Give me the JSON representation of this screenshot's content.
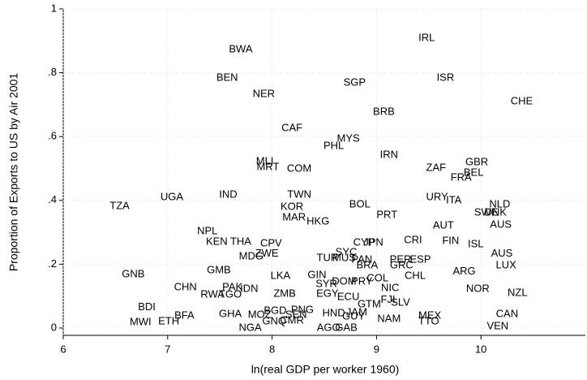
{
  "chart_data": {
    "type": "scatter",
    "xlabel": "ln(real GDP per worker 1960)",
    "ylabel": "Proportion of Exports to US by Air 2001",
    "xlim": [
      6,
      11
    ],
    "ylim": [
      -0.023,
      1
    ],
    "xticks": [
      6,
      7,
      8,
      9,
      10
    ],
    "yticks": [
      0,
      {
        "value": 0.2,
        "label": ".2"
      },
      {
        "value": 0.4,
        "label": ".4"
      },
      {
        "value": 0.6,
        "label": ".6"
      },
      {
        "value": 0.8,
        "label": ".8"
      },
      1
    ],
    "grid": true,
    "color": "#000000",
    "labels": [
      "IRL",
      "BWA",
      "BEN",
      "ISR",
      "SGP",
      "NER",
      "CHE",
      "BRB",
      "CAF",
      "MYS",
      "PHL",
      "IRN",
      "GBR",
      "MLI",
      "MRT",
      "COM",
      "ZAF",
      "BEL",
      "FRA",
      "TWN",
      "UGA",
      "IND",
      "URY",
      "ITA",
      "TZA",
      "KOR",
      "BOL",
      "NLD",
      "SWE",
      "DNK",
      "MAR",
      "PRT",
      "HKG",
      "AUS",
      "AUT",
      "NPL",
      "KEN",
      "THA",
      "CPV",
      "CRI",
      "FIN",
      "CYP",
      "JPN",
      "ISL",
      "SYC",
      "ZWE",
      "MDG",
      "TUR",
      "MUS",
      "PAN",
      "PER",
      "ESP",
      "AUS",
      "BRA",
      "GRC",
      "LUX",
      "GNB",
      "GMB",
      "LKA",
      "GIN",
      "SYR",
      "DOM",
      "PRY",
      "COL",
      "CHL",
      "ARG",
      "CHN",
      "PAK",
      "IDN",
      "RWA",
      "TGO",
      "ZMB",
      "EGY",
      "NIC",
      "NOR",
      "NZL",
      "ECU",
      "FJI",
      "SLV",
      "GTM",
      "BDI",
      "MWI",
      "ETH",
      "BFA",
      "GHA",
      "MOZ",
      "BGD",
      "PNG",
      "GNQ",
      "CMR",
      "SEN",
      "NGA",
      "HND",
      "JAM",
      "GUY",
      "AGO",
      "GAB",
      "NAM",
      "MEX",
      "TTO",
      "CAN",
      "VEN"
    ],
    "x": [
      9.48,
      7.7,
      7.57,
      9.66,
      8.79,
      7.92,
      10.39,
      9.07,
      8.19,
      8.73,
      8.59,
      9.12,
      9.96,
      7.93,
      7.96,
      8.26,
      9.57,
      9.93,
      9.81,
      8.26,
      7.04,
      7.58,
      9.58,
      9.74,
      6.54,
      8.19,
      8.84,
      10.18,
      10.05,
      10.14,
      8.21,
      9.1,
      8.44,
      10.19,
      9.64,
      7.38,
      7.47,
      7.7,
      7.99,
      9.35,
      9.71,
      8.88,
      8.97,
      9.95,
      8.71,
      7.95,
      7.8,
      8.53,
      8.69,
      8.86,
      9.23,
      9.42,
      10.2,
      8.91,
      9.24,
      10.24,
      6.67,
      7.49,
      8.08,
      8.43,
      8.52,
      8.69,
      8.86,
      9.01,
      9.37,
      9.84,
      7.17,
      7.62,
      7.78,
      7.43,
      7.6,
      8.12,
      8.53,
      9.13,
      9.97,
      10.35,
      8.73,
      9.11,
      9.23,
      8.93,
      6.8,
      6.74,
      7.01,
      7.16,
      7.6,
      7.88,
      8.03,
      8.29,
      8.02,
      8.19,
      8.23,
      7.79,
      8.59,
      8.81,
      8.78,
      8.54,
      8.71,
      9.12,
      9.51,
      9.5,
      10.25,
      10.16
    ],
    "values": [
      0.908,
      0.873,
      0.784,
      0.784,
      0.768,
      0.733,
      0.71,
      0.677,
      0.626,
      0.593,
      0.57,
      0.542,
      0.519,
      0.522,
      0.504,
      0.499,
      0.501,
      0.486,
      0.471,
      0.417,
      0.41,
      0.417,
      0.41,
      0.399,
      0.382,
      0.379,
      0.387,
      0.387,
      0.361,
      0.361,
      0.346,
      0.354,
      0.333,
      0.323,
      0.321,
      0.303,
      0.27,
      0.27,
      0.265,
      0.275,
      0.272,
      0.267,
      0.267,
      0.262,
      0.237,
      0.232,
      0.224,
      0.219,
      0.219,
      0.214,
      0.214,
      0.214,
      0.232,
      0.196,
      0.196,
      0.196,
      0.168,
      0.181,
      0.163,
      0.165,
      0.137,
      0.145,
      0.145,
      0.155,
      0.163,
      0.176,
      0.127,
      0.127,
      0.122,
      0.104,
      0.104,
      0.107,
      0.107,
      0.125,
      0.122,
      0.109,
      0.097,
      0.087,
      0.079,
      0.074,
      0.064,
      0.018,
      0.02,
      0.038,
      0.043,
      0.041,
      0.053,
      0.056,
      0.02,
      0.023,
      0.041,
      0.0,
      0.046,
      0.048,
      0.036,
      0.0,
      0.0,
      0.028,
      0.038,
      0.02,
      0.043,
      0.005
    ]
  }
}
